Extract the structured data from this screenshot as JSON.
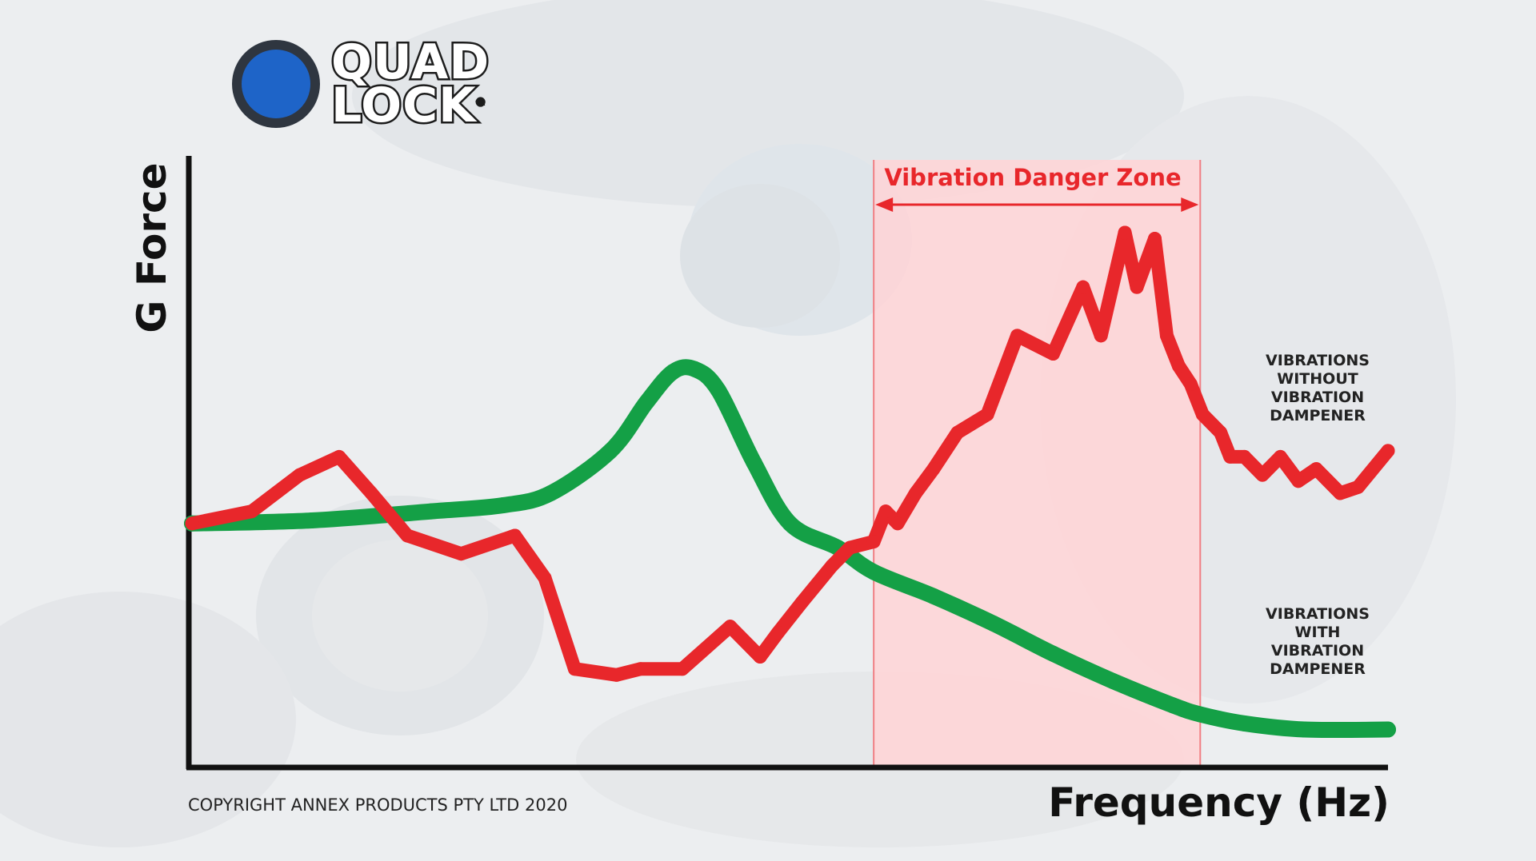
{
  "logo": {
    "line1": "QUAD",
    "line2": "LOCK",
    "mark": "®"
  },
  "colors": {
    "without_dampener": "#e8272b",
    "with_dampener": "#14a046",
    "danger_zone_fill": "#ffd4d6",
    "danger_zone_border": "#f07f84",
    "axis": "#111111"
  },
  "chart_data": {
    "type": "line",
    "xlabel": "Frequency (Hz)",
    "ylabel": "G Force",
    "xlim": [
      0,
      100
    ],
    "ylim": [
      0,
      100
    ],
    "grid": false,
    "axis_ticks": false,
    "annotations": [
      {
        "text": "Vibration Danger Zone",
        "type": "band",
        "x_range": [
          57,
          84.3
        ]
      }
    ],
    "series": [
      {
        "name": "VIBRATIONS\nWITHOUT\nVIBRATION\nDAMPENER",
        "color": "#e8272b",
        "x": [
          0,
          5,
          9,
          12.3,
          15,
          18,
          22.5,
          27,
          29.5,
          32,
          35.5,
          37.5,
          41,
          45,
          47.5,
          49,
          51,
          53.5,
          55,
          57,
          58,
          59,
          60.5,
          62,
          64,
          66.5,
          69,
          72,
          74.5,
          76,
          78,
          79,
          80.5,
          81.5,
          82.5,
          83.5,
          84.5,
          86,
          86.8,
          88,
          89.5,
          91,
          92.5,
          94,
          96,
          97.5,
          100
        ],
        "y": [
          40,
          42,
          48,
          51,
          45,
          38,
          35,
          38,
          31,
          16,
          15,
          16,
          16,
          23,
          18,
          22,
          27,
          33,
          36,
          37,
          42,
          40,
          45,
          49,
          55,
          58,
          71,
          68,
          79,
          71,
          88,
          79,
          87,
          71,
          66,
          63,
          58,
          55,
          51,
          51,
          48,
          51,
          47,
          49,
          45,
          46,
          52
        ]
      },
      {
        "name": "VIBRATIONS\nWITH\nVIBRATION\nDAMPENER",
        "color": "#14a046",
        "x": [
          0,
          10,
          20,
          26,
          30,
          35,
          38,
          40.2,
          42,
          44,
          47,
          50,
          54,
          57,
          62,
          67,
          72,
          77,
          82,
          84.3,
          88,
          93,
          100
        ],
        "y": [
          40,
          40.5,
          42,
          43,
          45,
          52,
          60,
          65,
          65.5,
          62,
          50,
          40,
          36,
          32,
          28,
          23.5,
          18.5,
          14,
          10,
          8.5,
          7,
          6,
          6
        ]
      }
    ]
  },
  "copyright": "COPYRIGHT ANNEX PRODUCTS PTY LTD 2020"
}
